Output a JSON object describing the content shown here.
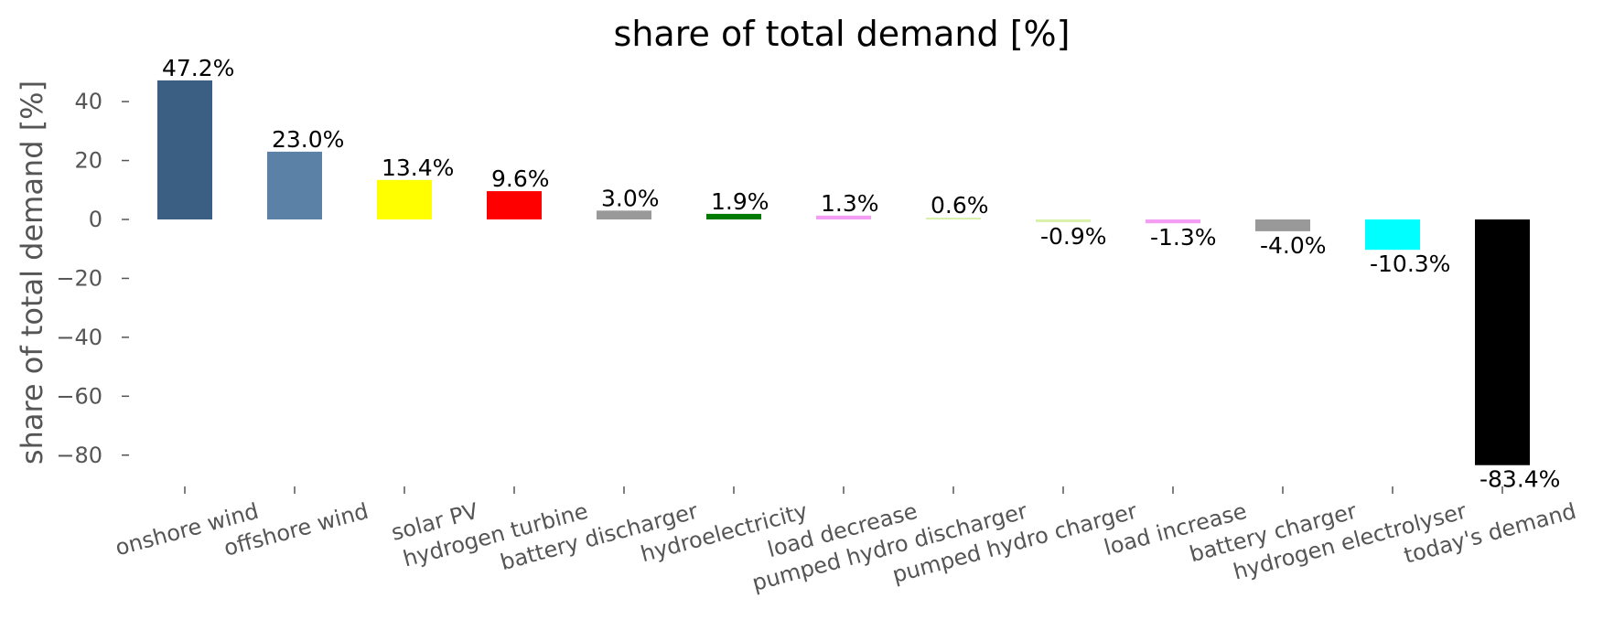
{
  "chart_data": {
    "type": "bar",
    "title": "share of total demand [%]",
    "xlabel": "",
    "ylabel": "share of total demand [%]",
    "ylim": [
      -90,
      50
    ],
    "yticks": [
      40,
      20,
      0,
      -20,
      -40,
      -60,
      -80
    ],
    "grid": false,
    "legend": "none",
    "categories": [
      "onshore wind",
      "offshore wind",
      "solar PV",
      "hydrogen turbine",
      "battery discharger",
      "hydroelectricity",
      "load decrease",
      "pumped hydro discharger",
      "pumped hydro charger",
      "load increase",
      "battery charger",
      "hydrogen electrolyser",
      "today's demand"
    ],
    "values": [
      47.2,
      23.0,
      13.4,
      9.6,
      3.0,
      1.9,
      1.3,
      0.6,
      -0.9,
      -1.3,
      -4.0,
      -10.3,
      -83.4
    ],
    "labels": [
      "47.2%",
      "23.0%",
      "13.4%",
      "9.6%",
      "3.0%",
      "1.9%",
      "1.3%",
      "0.6%",
      "-0.9%",
      "-1.3%",
      "-4.0%",
      "-10.3%",
      "-83.4%"
    ],
    "colors": [
      "#3b5f82",
      "#5b82a6",
      "#ffff00",
      "#ff0000",
      "#999999",
      "#007a00",
      "#f39df3",
      "#d8f0a8",
      "#d8f0a8",
      "#f39df3",
      "#999999",
      "#00ffff",
      "#000000"
    ]
  }
}
